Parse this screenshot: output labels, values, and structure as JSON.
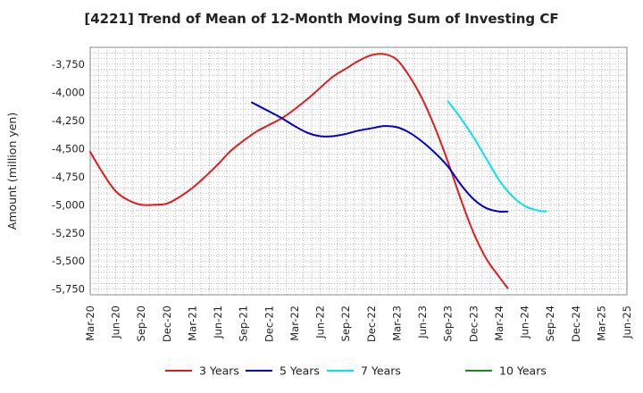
{
  "chart_data": {
    "type": "line",
    "title": "[4221]  Trend of Mean of 12-Month Moving Sum of Investing CF",
    "xlabel": "",
    "ylabel": "Amount (million yen)",
    "ylim": [
      -5800,
      -3600
    ],
    "yticks": [
      -3750,
      -4000,
      -4250,
      -4500,
      -4750,
      -5000,
      -5250,
      -5500,
      -5750
    ],
    "ytick_labels": [
      "-3,750",
      "-4,000",
      "-4,250",
      "-4,500",
      "-4,750",
      "-5,000",
      "-5,250",
      "-5,500",
      "-5,750"
    ],
    "x_labels": [
      "Mar-20",
      "Jun-20",
      "Sep-20",
      "Dec-20",
      "Mar-21",
      "Jun-21",
      "Sep-21",
      "Dec-21",
      "Mar-22",
      "Jun-22",
      "Sep-22",
      "Dec-22",
      "Mar-23",
      "Jun-23",
      "Sep-23",
      "Dec-23",
      "Mar-24",
      "Jun-24",
      "Sep-24",
      "Dec-24",
      "Mar-25",
      "Jun-25"
    ],
    "grid": true,
    "legend_position": "bottom",
    "series": [
      {
        "name": "3 Years",
        "color": "#e31a1c",
        "points": [
          [
            0,
            -4530
          ],
          [
            0.5,
            -4720
          ],
          [
            1,
            -4880
          ],
          [
            1.5,
            -4960
          ],
          [
            2,
            -5000
          ],
          [
            2.5,
            -5000
          ],
          [
            3,
            -4990
          ],
          [
            3.5,
            -4930
          ],
          [
            4,
            -4850
          ],
          [
            4.5,
            -4750
          ],
          [
            5,
            -4640
          ],
          [
            5.5,
            -4520
          ],
          [
            6,
            -4430
          ],
          [
            6.5,
            -4350
          ],
          [
            7,
            -4290
          ],
          [
            7.5,
            -4230
          ],
          [
            8,
            -4150
          ],
          [
            8.5,
            -4060
          ],
          [
            9,
            -3960
          ],
          [
            9.5,
            -3860
          ],
          [
            10,
            -3790
          ],
          [
            10.5,
            -3720
          ],
          [
            11,
            -3670
          ],
          [
            11.5,
            -3660
          ],
          [
            12,
            -3710
          ],
          [
            12.5,
            -3860
          ],
          [
            13,
            -4060
          ],
          [
            13.5,
            -4320
          ],
          [
            14,
            -4620
          ],
          [
            14.5,
            -4950
          ],
          [
            15,
            -5250
          ],
          [
            15.5,
            -5480
          ],
          [
            16,
            -5640
          ],
          [
            16.33,
            -5740
          ]
        ]
      },
      {
        "name": "5 Years",
        "color": "#0000cc",
        "points": [
          [
            6.33,
            -4090
          ],
          [
            7,
            -4170
          ],
          [
            7.5,
            -4230
          ],
          [
            8,
            -4300
          ],
          [
            8.5,
            -4360
          ],
          [
            9,
            -4390
          ],
          [
            9.5,
            -4390
          ],
          [
            10,
            -4370
          ],
          [
            10.5,
            -4340
          ],
          [
            11,
            -4320
          ],
          [
            11.5,
            -4300
          ],
          [
            12,
            -4310
          ],
          [
            12.5,
            -4360
          ],
          [
            13,
            -4440
          ],
          [
            13.5,
            -4540
          ],
          [
            14,
            -4660
          ],
          [
            14.5,
            -4820
          ],
          [
            15,
            -4950
          ],
          [
            15.5,
            -5030
          ],
          [
            16,
            -5060
          ],
          [
            16.33,
            -5060
          ]
        ]
      },
      {
        "name": "7 Years",
        "color": "#00e5ee",
        "points": [
          [
            14,
            -4080
          ],
          [
            14.5,
            -4230
          ],
          [
            15,
            -4400
          ],
          [
            15.5,
            -4590
          ],
          [
            16,
            -4780
          ],
          [
            16.5,
            -4920
          ],
          [
            17,
            -5010
          ],
          [
            17.5,
            -5050
          ],
          [
            17.83,
            -5060
          ]
        ]
      },
      {
        "name": "10 Years",
        "color": "#1a8a1a",
        "points": []
      }
    ]
  }
}
